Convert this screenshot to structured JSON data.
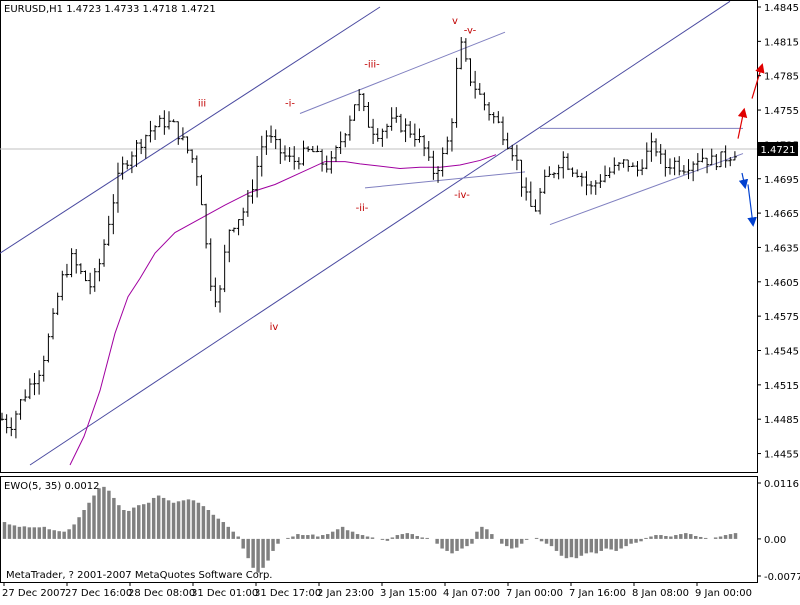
{
  "window": {
    "header": "EURUSD,H1  1.4723 1.4733 1.4718 1.4721",
    "copyright": "MetaTrader, ? 2001-2007 MetaQuotes Software Corp."
  },
  "colors": {
    "background": "#ffffff",
    "bars": "#000000",
    "channel": "#4a4aa0",
    "wedge": "#8080c0",
    "moving_average": "#a000a0",
    "wave_labels": "#c00000",
    "price_tag_bg": "#000000",
    "price_tag_fg": "#ffffff",
    "histogram": "#808080",
    "arrow_up": "#e00000",
    "arrow_down": "#0040d0"
  },
  "chart_data": [
    {
      "type": "ohlc",
      "symbol": "EURUSD",
      "timeframe": "H1",
      "last_price": "1.4721",
      "ylim": [
        1.4445,
        1.4845
      ],
      "y_ticks": [
        "1.4845",
        "1.4815",
        "1.4785",
        "1.4755",
        "1.4725",
        "1.4695",
        "1.4665",
        "1.4635",
        "1.4605",
        "1.4575",
        "1.4545",
        "1.4515",
        "1.4485",
        "1.4455"
      ],
      "x_ticks": [
        "27 Dec 2007",
        "27 Dec 16:00",
        "28 Dec 08:00",
        "31 Dec 01:00",
        "31 Dec 17:00",
        "2 Jan 23:00",
        "3 Jan 15:00",
        "4 Jan 07:00",
        "7 Jan 00:00",
        "7 Jan 16:00",
        "8 Jan 08:00",
        "9 Jan 00:00"
      ],
      "close_path": [
        [
          0,
          1.4485
        ],
        [
          5,
          1.4478
        ],
        [
          12,
          1.45
        ],
        [
          18,
          1.4515
        ],
        [
          25,
          1.453
        ],
        [
          32,
          1.4565
        ],
        [
          38,
          1.4605
        ],
        [
          45,
          1.4625
        ],
        [
          52,
          1.461
        ],
        [
          58,
          1.46
        ],
        [
          64,
          1.4625
        ],
        [
          70,
          1.4665
        ],
        [
          76,
          1.47
        ],
        [
          82,
          1.4715
        ],
        [
          88,
          1.4725
        ],
        [
          94,
          1.4735
        ],
        [
          100,
          1.4742
        ],
        [
          106,
          1.4745
        ],
        [
          112,
          1.474
        ],
        [
          118,
          1.4725
        ],
        [
          124,
          1.471
        ],
        [
          128,
          1.469
        ],
        [
          134,
          1.461
        ],
        [
          140,
          1.4585
        ],
        [
          146,
          1.465
        ],
        [
          152,
          1.466
        ],
        [
          158,
          1.467
        ],
        [
          164,
          1.47
        ],
        [
          170,
          1.4735
        ],
        [
          176,
          1.4725
        ],
        [
          182,
          1.4715
        ],
        [
          188,
          1.471
        ],
        [
          194,
          1.4715
        ],
        [
          200,
          1.472
        ],
        [
          206,
          1.471
        ],
        [
          212,
          1.4705
        ],
        [
          218,
          1.4725
        ],
        [
          224,
          1.4745
        ],
        [
          230,
          1.477
        ],
        [
          236,
          1.4745
        ],
        [
          242,
          1.4735
        ],
        [
          248,
          1.474
        ],
        [
          254,
          1.4745
        ],
        [
          260,
          1.474
        ],
        [
          266,
          1.4735
        ],
        [
          272,
          1.4725
        ],
        [
          278,
          1.47
        ],
        [
          284,
          1.471
        ],
        [
          290,
          1.4735
        ],
        [
          296,
          1.4815
        ],
        [
          302,
          1.4785
        ],
        [
          308,
          1.477
        ],
        [
          314,
          1.4755
        ],
        [
          320,
          1.4745
        ],
        [
          326,
          1.473
        ],
        [
          332,
          1.4715
        ],
        [
          338,
          1.468
        ],
        [
          344,
          1.4665
        ],
        [
          350,
          1.469
        ],
        [
          356,
          1.47
        ],
        [
          362,
          1.4715
        ],
        [
          368,
          1.4705
        ],
        [
          374,
          1.47
        ],
        [
          380,
          1.4685
        ],
        [
          386,
          1.4695
        ],
        [
          392,
          1.47
        ],
        [
          398,
          1.4705
        ],
        [
          404,
          1.471
        ],
        [
          410,
          1.47
        ],
        [
          416,
          1.4715
        ],
        [
          422,
          1.4725
        ],
        [
          428,
          1.4705
        ],
        [
          434,
          1.471
        ],
        [
          440,
          1.4705
        ],
        [
          446,
          1.471
        ],
        [
          452,
          1.4715
        ],
        [
          458,
          1.471
        ],
        [
          464,
          1.4712
        ],
        [
          470,
          1.4715
        ],
        [
          476,
          1.4721
        ]
      ],
      "moving_average": [
        [
          70,
          1.4445
        ],
        [
          84,
          1.447
        ],
        [
          100,
          1.451
        ],
        [
          115,
          1.456
        ],
        [
          128,
          1.4592
        ],
        [
          140,
          1.4608
        ],
        [
          155,
          1.463
        ],
        [
          175,
          1.4648
        ],
        [
          200,
          1.466
        ],
        [
          225,
          1.4672
        ],
        [
          250,
          1.4683
        ],
        [
          275,
          1.469
        ],
        [
          300,
          1.47
        ],
        [
          325,
          1.471
        ],
        [
          345,
          1.471
        ],
        [
          360,
          1.4708
        ],
        [
          380,
          1.4706
        ],
        [
          400,
          1.4704
        ],
        [
          420,
          1.4705
        ],
        [
          440,
          1.4705
        ],
        [
          460,
          1.4707
        ],
        [
          480,
          1.4711
        ],
        [
          496,
          1.4716
        ]
      ],
      "lines": [
        {
          "name": "channel-upper",
          "from": [
            0,
            1.463
          ],
          "to": [
            380,
            1.4845
          ]
        },
        {
          "name": "channel-lower",
          "from": [
            30,
            1.4445
          ],
          "to": [
            730,
            1.485
          ]
        },
        {
          "name": "wedge-upper",
          "from": [
            300,
            1.4752
          ],
          "to": [
            505,
            1.4823
          ]
        },
        {
          "name": "wedge-lower",
          "from": [
            365,
            1.4687
          ],
          "to": [
            525,
            1.4701
          ]
        },
        {
          "name": "triangle-upper",
          "from": [
            540,
            1.4739
          ],
          "to": [
            743,
            1.4739
          ]
        },
        {
          "name": "triangle-lower",
          "from": [
            550,
            1.4655
          ],
          "to": [
            743,
            1.4717
          ]
        }
      ],
      "wave_labels": [
        {
          "text": "iii",
          "x": 202,
          "y": 1.4758
        },
        {
          "text": "-i-",
          "x": 290,
          "y": 1.4758
        },
        {
          "text": "-iii-",
          "x": 372,
          "y": 1.4792
        },
        {
          "text": "v",
          "x": 455,
          "y": 1.483
        },
        {
          "text": "-v-",
          "x": 470,
          "y": 1.4822
        },
        {
          "text": "-ii-",
          "x": 362,
          "y": 1.4667
        },
        {
          "text": "-iv-",
          "x": 462,
          "y": 1.4678
        },
        {
          "text": "iv",
          "x": 274,
          "y": 1.4563
        }
      ],
      "arrows": [
        {
          "name": "target-up",
          "from": [
            752,
            1.4765
          ],
          "to": [
            762,
            1.4794
          ],
          "color": "up"
        },
        {
          "name": "target-up-short",
          "from": [
            738,
            1.473
          ],
          "to": [
            744,
            1.4755
          ],
          "color": "up"
        },
        {
          "name": "target-down",
          "from": [
            742,
            1.47
          ],
          "to": [
            745,
            1.4688
          ],
          "color": "down"
        },
        {
          "name": "target-down-long",
          "from": [
            748,
            1.469
          ],
          "to": [
            753,
            1.4655
          ],
          "color": "down"
        }
      ]
    },
    {
      "type": "bar",
      "indicator": "EWO(5, 35) 0.0012",
      "ylim": [
        -0.0077,
        0.0116
      ],
      "y_ticks": [
        "0.0116",
        "0.00",
        "-0.0077"
      ],
      "values": [
        0.0035,
        0.003,
        0.0028,
        0.0025,
        0.0026,
        0.0024,
        0.0024,
        0.0024,
        0.0025,
        0.002,
        0.0018,
        0.0016,
        0.0015,
        0.002,
        0.003,
        0.0045,
        0.006,
        0.0075,
        0.009,
        0.0105,
        0.0108,
        0.01,
        0.0085,
        0.007,
        0.006,
        0.0058,
        0.0065,
        0.007,
        0.0072,
        0.0075,
        0.0085,
        0.009,
        0.0085,
        0.008,
        0.0075,
        0.0078,
        0.008,
        0.0082,
        0.008,
        0.0075,
        0.0068,
        0.006,
        0.005,
        0.0042,
        0.0035,
        0.0025,
        0.0015,
        0.0005,
        -0.002,
        -0.004,
        -0.006,
        -0.007,
        -0.006,
        -0.0045,
        -0.0025,
        -0.001,
        0.0,
        0.0002,
        0.0005,
        0.001,
        0.0008,
        0.0008,
        0.0009,
        0.0005,
        0.0008,
        0.001,
        0.0015,
        0.002,
        0.0025,
        0.0018,
        0.0015,
        0.001,
        0.0008,
        0.0005,
        0.0003,
        0.0,
        -0.0002,
        -0.0004,
        0.0003,
        0.0008,
        0.001,
        0.0012,
        0.001,
        0.0006,
        0.0003,
        0.0002,
        0.0,
        -0.001,
        -0.002,
        -0.0025,
        -0.003,
        -0.0025,
        -0.002,
        -0.0015,
        -0.001,
        0.0015,
        0.0025,
        0.002,
        0.001,
        0.0,
        -0.001,
        -0.0015,
        -0.002,
        -0.0018,
        -0.001,
        -0.0002,
        0.0,
        0.0002,
        -0.0005,
        -0.001,
        -0.0015,
        -0.0025,
        -0.0035,
        -0.004,
        -0.0038,
        -0.004,
        -0.0035,
        -0.003,
        -0.0028,
        -0.003,
        -0.0025,
        -0.002,
        -0.0022,
        -0.0025,
        -0.002,
        -0.0015,
        -0.001,
        -0.0008,
        -0.0005,
        0.0002,
        0.0005,
        0.0008,
        0.0008,
        0.0006,
        0.0005,
        0.0008,
        0.001,
        0.0012,
        0.001,
        0.0006,
        0.0004,
        0.0002,
        0.0,
        0.0003,
        0.0005,
        0.0008,
        0.001,
        0.0012
      ]
    }
  ]
}
